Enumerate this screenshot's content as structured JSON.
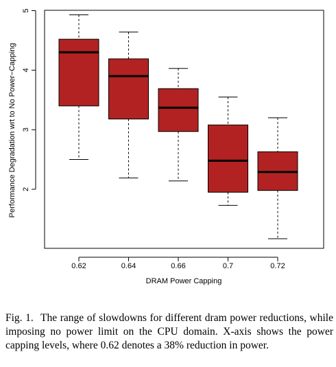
{
  "chart_data": {
    "type": "boxplot",
    "xlabel": "DRAM Power Capping",
    "ylabel": "Performance Degradation wrt to No Power−Capping",
    "ylim": [
      1,
      5
    ],
    "yticks": [
      "2",
      "3",
      "4",
      "5"
    ],
    "categories": [
      "0.62",
      "0.64",
      "0.66",
      "0.7",
      "0.72"
    ],
    "boxes": [
      {
        "whisker_low": 2.5,
        "q1": 3.4,
        "median": 4.3,
        "q3": 4.52,
        "whisker_high": 4.93
      },
      {
        "whisker_low": 2.19,
        "q1": 3.18,
        "median": 3.9,
        "q3": 4.19,
        "whisker_high": 4.64
      },
      {
        "whisker_low": 2.14,
        "q1": 2.97,
        "median": 3.37,
        "q3": 3.69,
        "whisker_high": 4.03
      },
      {
        "whisker_low": 1.73,
        "q1": 1.95,
        "median": 2.48,
        "q3": 3.08,
        "whisker_high": 3.55
      },
      {
        "whisker_low": 1.17,
        "q1": 1.98,
        "median": 2.29,
        "q3": 2.63,
        "whisker_high": 3.2
      }
    ],
    "box_color": "#b22222",
    "grid": false,
    "legend": "none"
  },
  "caption": {
    "label": "Fig. 1.",
    "text": "The range of slowdowns for different dram power reductions, while imposing no power limit on the CPU domain. X-axis shows the power capping levels, where 0.62 denotes a 38% reduction in power."
  }
}
